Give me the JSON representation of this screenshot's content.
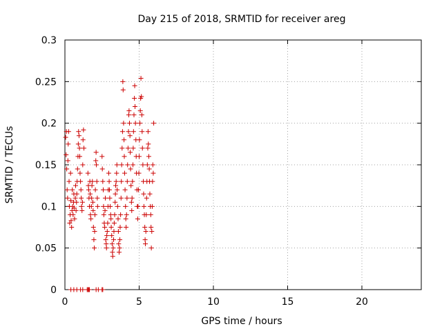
{
  "chart_data": {
    "type": "scatter",
    "title": "Day 215 of 2018, SRMTID for receiver areg",
    "xlabel": "GPS time / hours",
    "ylabel": "SRMTID / TECUs",
    "xlim": [
      0,
      24
    ],
    "ylim": [
      0,
      0.3
    ],
    "x_ticks": [
      0,
      5,
      10,
      15,
      20
    ],
    "x_tick_labels": [
      "0",
      "5",
      "10",
      "15",
      "20"
    ],
    "y_ticks": [
      0,
      0.05,
      0.1,
      0.15,
      0.2,
      0.25,
      0.3
    ],
    "y_tick_labels": [
      "0",
      "0.05",
      "0.1",
      "0.15",
      "0.2",
      "0.25",
      "0.3"
    ],
    "grid": true,
    "marker": "plus",
    "color": "#cc0000",
    "series": [
      {
        "name": "SRMTID",
        "points": [
          [
            0.05,
            0.183
          ],
          [
            0.08,
            0.162
          ],
          [
            0.1,
            0.19
          ],
          [
            0.12,
            0.145
          ],
          [
            0.15,
            0.12
          ],
          [
            0.18,
            0.11
          ],
          [
            0.2,
            0.155
          ],
          [
            0.22,
            0.175
          ],
          [
            0.25,
            0.19
          ],
          [
            0.28,
            0.13
          ],
          [
            0.3,
            0.1
          ],
          [
            0.32,
            0.08
          ],
          [
            0.35,
            0.09
          ],
          [
            0.38,
            0.14
          ],
          [
            0.4,
            0.107
          ],
          [
            0.42,
            0.083
          ],
          [
            0.45,
            0.075
          ],
          [
            0.48,
            0.095
          ],
          [
            0.5,
            0.12
          ],
          [
            0.52,
            0.1
          ],
          [
            0.55,
            0.09
          ],
          [
            0.58,
            0.105
          ],
          [
            0.6,
            0.115
          ],
          [
            0.62,
            0.098
          ],
          [
            0.65,
            0.085
          ],
          [
            0.7,
            0.11
          ],
          [
            0.72,
            0.125
          ],
          [
            0.75,
            0.095
          ],
          [
            0.78,
            0.105
          ],
          [
            0.8,
            0.115
          ],
          [
            0.82,
            0.13
          ],
          [
            0.85,
            0.145
          ],
          [
            0.88,
            0.16
          ],
          [
            0.9,
            0.175
          ],
          [
            0.92,
            0.19
          ],
          [
            0.95,
            0.185
          ],
          [
            0.98,
            0.17
          ],
          [
            1.0,
            0.16
          ],
          [
            1.02,
            0.14
          ],
          [
            1.05,
            0.13
          ],
          [
            1.08,
            0.12
          ],
          [
            1.1,
            0.11
          ],
          [
            1.12,
            0.1
          ],
          [
            1.15,
            0.095
          ],
          [
            1.18,
            0.105
          ],
          [
            1.2,
            0.15
          ],
          [
            1.22,
            0.18
          ],
          [
            1.25,
            0.192
          ],
          [
            1.28,
            0.17
          ],
          [
            1.55,
            0.14
          ],
          [
            1.58,
            0.125
          ],
          [
            1.6,
            0.12
          ],
          [
            1.62,
            0.11
          ],
          [
            1.65,
            0.1
          ],
          [
            1.68,
            0.13
          ],
          [
            1.7,
            0.115
          ],
          [
            1.72,
            0.09
          ],
          [
            1.75,
            0.085
          ],
          [
            1.78,
            0.1
          ],
          [
            1.8,
            0.11
          ],
          [
            1.82,
            0.125
          ],
          [
            1.85,
            0.13
          ],
          [
            1.88,
            0.105
          ],
          [
            1.9,
            0.095
          ],
          [
            1.92,
            0.075
          ],
          [
            1.95,
            0.06
          ],
          [
            1.98,
            0.05
          ],
          [
            2.0,
            0.07
          ],
          [
            2.02,
            0.09
          ],
          [
            2.05,
            0.12
          ],
          [
            2.08,
            0.155
          ],
          [
            2.1,
            0.165
          ],
          [
            2.12,
            0.15
          ],
          [
            2.15,
            0.13
          ],
          [
            2.18,
            0.11
          ],
          [
            2.2,
            0.1
          ],
          [
            2.5,
            0.16
          ],
          [
            2.52,
            0.145
          ],
          [
            2.55,
            0.13
          ],
          [
            2.58,
            0.12
          ],
          [
            2.6,
            0.1
          ],
          [
            2.62,
            0.09
          ],
          [
            2.65,
            0.08
          ],
          [
            2.68,
            0.075
          ],
          [
            2.7,
            0.095
          ],
          [
            2.72,
            0.11
          ],
          [
            2.75,
            0.06
          ],
          [
            2.78,
            0.055
          ],
          [
            2.8,
            0.05
          ],
          [
            2.82,
            0.065
          ],
          [
            2.85,
            0.07
          ],
          [
            2.88,
            0.08
          ],
          [
            2.9,
            0.1
          ],
          [
            2.92,
            0.12
          ],
          [
            2.95,
            0.14
          ],
          [
            2.98,
            0.13
          ],
          [
            3.0,
            0.12
          ],
          [
            3.02,
            0.11
          ],
          [
            3.05,
            0.1
          ],
          [
            3.08,
            0.09
          ],
          [
            3.1,
            0.085
          ],
          [
            3.12,
            0.075
          ],
          [
            3.15,
            0.065
          ],
          [
            3.18,
            0.055
          ],
          [
            3.2,
            0.045
          ],
          [
            3.22,
            0.04
          ],
          [
            3.25,
            0.05
          ],
          [
            3.28,
            0.06
          ],
          [
            3.3,
            0.07
          ],
          [
            3.32,
            0.08
          ],
          [
            3.35,
            0.09
          ],
          [
            3.38,
            0.105
          ],
          [
            3.4,
            0.115
          ],
          [
            3.42,
            0.125
          ],
          [
            3.45,
            0.13
          ],
          [
            3.48,
            0.14
          ],
          [
            3.5,
            0.15
          ],
          [
            3.52,
            0.12
          ],
          [
            3.55,
            0.1
          ],
          [
            3.58,
            0.085
          ],
          [
            3.6,
            0.07
          ],
          [
            3.62,
            0.055
          ],
          [
            3.65,
            0.045
          ],
          [
            3.68,
            0.05
          ],
          [
            3.7,
            0.06
          ],
          [
            3.72,
            0.075
          ],
          [
            3.75,
            0.09
          ],
          [
            3.78,
            0.11
          ],
          [
            3.8,
            0.13
          ],
          [
            3.82,
            0.15
          ],
          [
            3.85,
            0.17
          ],
          [
            3.88,
            0.19
          ],
          [
            3.9,
            0.25
          ],
          [
            3.92,
            0.24
          ],
          [
            3.95,
            0.2
          ],
          [
            3.98,
            0.18
          ],
          [
            4.0,
            0.16
          ],
          [
            4.02,
            0.14
          ],
          [
            4.05,
            0.12
          ],
          [
            4.08,
            0.1
          ],
          [
            4.1,
            0.085
          ],
          [
            4.12,
            0.075
          ],
          [
            4.15,
            0.09
          ],
          [
            4.18,
            0.11
          ],
          [
            4.2,
            0.13
          ],
          [
            4.22,
            0.15
          ],
          [
            4.25,
            0.17
          ],
          [
            4.28,
            0.19
          ],
          [
            4.3,
            0.21
          ],
          [
            4.32,
            0.215
          ],
          [
            4.35,
            0.2
          ],
          [
            4.38,
            0.185
          ],
          [
            4.4,
            0.165
          ],
          [
            4.42,
            0.145
          ],
          [
            4.45,
            0.125
          ],
          [
            4.48,
            0.105
          ],
          [
            4.5,
            0.095
          ],
          [
            4.52,
            0.11
          ],
          [
            4.55,
            0.13
          ],
          [
            4.58,
            0.15
          ],
          [
            4.6,
            0.17
          ],
          [
            4.62,
            0.19
          ],
          [
            4.65,
            0.21
          ],
          [
            4.68,
            0.23
          ],
          [
            4.7,
            0.245
          ],
          [
            4.72,
            0.22
          ],
          [
            4.75,
            0.2
          ],
          [
            4.78,
            0.18
          ],
          [
            4.8,
            0.16
          ],
          [
            4.82,
            0.14
          ],
          [
            4.85,
            0.12
          ],
          [
            4.88,
            0.1
          ],
          [
            4.9,
            0.085
          ],
          [
            4.92,
            0.1
          ],
          [
            4.95,
            0.12
          ],
          [
            4.98,
            0.14
          ],
          [
            5.0,
            0.16
          ],
          [
            5.02,
            0.18
          ],
          [
            5.05,
            0.2
          ],
          [
            5.08,
            0.215
          ],
          [
            5.1,
            0.23
          ],
          [
            5.12,
            0.254
          ],
          [
            5.15,
            0.232
          ],
          [
            5.18,
            0.21
          ],
          [
            5.2,
            0.19
          ],
          [
            5.22,
            0.17
          ],
          [
            5.25,
            0.15
          ],
          [
            5.28,
            0.13
          ],
          [
            5.3,
            0.115
          ],
          [
            5.32,
            0.1
          ],
          [
            5.35,
            0.09
          ],
          [
            5.38,
            0.075
          ],
          [
            5.4,
            0.06
          ],
          [
            5.42,
            0.055
          ],
          [
            5.45,
            0.07
          ],
          [
            5.48,
            0.09
          ],
          [
            5.5,
            0.11
          ],
          [
            5.52,
            0.13
          ],
          [
            5.55,
            0.15
          ],
          [
            5.58,
            0.17
          ],
          [
            5.6,
            0.19
          ],
          [
            5.62,
            0.175
          ],
          [
            5.65,
            0.16
          ],
          [
            5.68,
            0.145
          ],
          [
            5.7,
            0.13
          ],
          [
            5.72,
            0.115
          ],
          [
            5.75,
            0.1
          ],
          [
            5.78,
            0.09
          ],
          [
            5.8,
            0.075
          ],
          [
            5.82,
            0.05
          ],
          [
            5.85,
            0.07
          ],
          [
            5.88,
            0.1
          ],
          [
            5.9,
            0.13
          ],
          [
            5.92,
            0.15
          ],
          [
            5.95,
            0.14
          ],
          [
            5.98,
            0.2
          ],
          [
            0.4,
            0.0
          ],
          [
            0.6,
            0.0
          ],
          [
            0.8,
            0.0
          ],
          [
            1.05,
            0.0
          ],
          [
            1.2,
            0.0
          ],
          [
            1.5,
            0.0
          ],
          [
            1.55,
            0.0
          ],
          [
            1.6,
            0.0
          ],
          [
            1.65,
            0.0
          ],
          [
            2.1,
            0.0
          ],
          [
            2.25,
            0.0
          ],
          [
            2.5,
            0.0
          ],
          [
            2.55,
            0.0
          ]
        ]
      }
    ]
  }
}
